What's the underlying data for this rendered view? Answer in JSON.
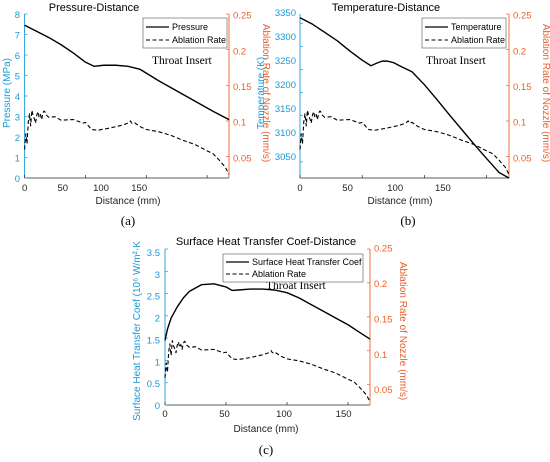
{
  "colors": {
    "left_axis": "#1a9ad6",
    "right_axis": "#e8602c",
    "line": "#000000"
  },
  "panels": [
    {
      "caption": "(a)",
      "title": "Pressure-Distance",
      "xlabel": "Distance (mm)",
      "ylabel_left": "Pressure (MPa)",
      "ylabel_right": "Ablation Rate of Nozzle (mm/s)",
      "annotation": "Throat Insert",
      "legend": [
        "Pressure",
        "Ablation Rate"
      ],
      "x_ticks": [
        "0",
        "50",
        "100",
        "150"
      ],
      "y_left_ticks": [
        "0",
        "1",
        "2",
        "3",
        "4",
        "5",
        "6",
        "7",
        "8"
      ],
      "y_right_ticks": [
        "0.05",
        "0.1",
        "0.15",
        "0.2",
        "0.25"
      ]
    },
    {
      "caption": "(b)",
      "title": "Temperature-Distance",
      "xlabel": "Distance (mm)",
      "ylabel_left": "Temperature (K)",
      "ylabel_right": "Ablation Rate of Nozzle (mm/s)",
      "annotation": "Throat Insert",
      "legend": [
        "Temperature",
        "Ablation Rate"
      ],
      "x_ticks": [
        "0",
        "50",
        "100",
        "150"
      ],
      "y_left_ticks": [
        "3050",
        "3100",
        "3150",
        "3200",
        "3250",
        "3300",
        "3350"
      ],
      "y_right_ticks": [
        "0.05",
        "0.1",
        "0.15",
        "0.2",
        "0.25"
      ]
    },
    {
      "caption": "(c)",
      "title": "Surface Heat Transfer Coef-Distance",
      "xlabel": "Distance (mm)",
      "ylabel_left": "Surface Heat Transfer Coef (10⁶ W/m²·K",
      "ylabel_right": "Ablation Rate of Nozzle (mm/s)",
      "annotation": "Throat Insert",
      "legend": [
        "Surface Heat Transfer Coef",
        "Ablation Rate"
      ],
      "x_ticks": [
        "0",
        "50",
        "100",
        "150"
      ],
      "y_left_ticks": [
        "0",
        "0.5",
        "1",
        "1.5",
        "2",
        "2.5",
        "3",
        "3.5"
      ],
      "y_right_ticks": [
        "0.05",
        "0.1",
        "0.15",
        "0.2",
        "0.25"
      ]
    }
  ],
  "chart_data": [
    {
      "type": "line",
      "title": "Pressure-Distance",
      "xlabel": "Distance (mm)",
      "ylabel": "Pressure (MPa)",
      "y2label": "Ablation Rate of Nozzle (mm/s)",
      "xlim": [
        0,
        168
      ],
      "ylim": [
        0,
        8
      ],
      "y2lim": [
        0.02,
        0.25
      ],
      "legend_position": "top-right",
      "series": [
        {
          "name": "Pressure",
          "axis": "left",
          "style": "solid",
          "x": [
            0,
            10,
            20,
            30,
            40,
            50,
            57,
            65,
            75,
            85,
            95,
            110,
            125,
            140,
            155,
            168
          ],
          "y": [
            7.45,
            7.15,
            6.85,
            6.5,
            6.1,
            5.65,
            5.45,
            5.5,
            5.5,
            5.45,
            5.3,
            4.75,
            4.25,
            3.75,
            3.25,
            2.85
          ]
        },
        {
          "name": "Ablation Rate",
          "axis": "right",
          "style": "dashed",
          "x": [
            0,
            1,
            2,
            3,
            4,
            5,
            6,
            7,
            8,
            9,
            10,
            11,
            12,
            13,
            14,
            15,
            16,
            17,
            18,
            20,
            25,
            30,
            40,
            48,
            50,
            55,
            60,
            70,
            80,
            85,
            87,
            88,
            90,
            95,
            100,
            110,
            120,
            130,
            140,
            150,
            155,
            160,
            165,
            168
          ],
          "y": [
            0.06,
            0.082,
            0.068,
            0.098,
            0.11,
            0.093,
            0.115,
            0.107,
            0.103,
            0.097,
            0.108,
            0.113,
            0.105,
            0.109,
            0.102,
            0.111,
            0.114,
            0.112,
            0.108,
            0.105,
            0.106,
            0.101,
            0.102,
            0.097,
            0.098,
            0.088,
            0.087,
            0.09,
            0.094,
            0.097,
            0.1,
            0.097,
            0.098,
            0.092,
            0.088,
            0.085,
            0.08,
            0.073,
            0.067,
            0.058,
            0.054,
            0.045,
            0.035,
            0.025
          ]
        }
      ]
    },
    {
      "type": "line",
      "title": "Temperature-Distance",
      "xlabel": "Distance (mm)",
      "ylabel": "Temperature (K)",
      "y2label": "Ablation Rate of Nozzle (mm/s)",
      "xlim": [
        0,
        168
      ],
      "ylim": [
        3015,
        3370
      ],
      "y2lim": [
        0.02,
        0.25
      ],
      "legend_position": "top-right",
      "series": [
        {
          "name": "Temperature",
          "axis": "left",
          "style": "solid",
          "x": [
            0,
            10,
            20,
            30,
            40,
            50,
            57,
            62,
            66,
            70,
            75,
            80,
            90,
            100,
            110,
            120,
            130,
            140,
            150,
            160,
            168
          ],
          "y": [
            3362,
            3348,
            3330,
            3312,
            3290,
            3270,
            3258,
            3264,
            3268,
            3268,
            3265,
            3258,
            3245,
            3217,
            3185,
            3152,
            3120,
            3088,
            3057,
            3027,
            3015
          ]
        },
        {
          "name": "Ablation Rate",
          "axis": "right",
          "style": "dashed",
          "x": [
            0,
            1,
            2,
            3,
            4,
            5,
            6,
            7,
            8,
            9,
            10,
            11,
            12,
            13,
            14,
            15,
            16,
            17,
            18,
            20,
            25,
            30,
            40,
            48,
            50,
            55,
            60,
            70,
            80,
            85,
            87,
            88,
            90,
            95,
            100,
            110,
            120,
            130,
            140,
            150,
            155,
            160,
            165,
            168
          ],
          "y": [
            0.06,
            0.082,
            0.068,
            0.098,
            0.11,
            0.093,
            0.115,
            0.107,
            0.103,
            0.097,
            0.108,
            0.113,
            0.105,
            0.109,
            0.102,
            0.111,
            0.114,
            0.112,
            0.108,
            0.105,
            0.106,
            0.101,
            0.102,
            0.097,
            0.098,
            0.088,
            0.087,
            0.09,
            0.094,
            0.097,
            0.1,
            0.097,
            0.098,
            0.092,
            0.088,
            0.085,
            0.08,
            0.073,
            0.067,
            0.058,
            0.054,
            0.045,
            0.035,
            0.025
          ]
        }
      ]
    },
    {
      "type": "line",
      "title": "Surface Heat Transfer Coef-Distance",
      "xlabel": "Distance (mm)",
      "ylabel": "Surface Heat Transfer Coef (10⁶ W/m²·K",
      "y2label": "Ablation Rate of Nozzle (mm/s)",
      "xlim": [
        0,
        168
      ],
      "ylim": [
        0,
        3.5
      ],
      "y2lim": [
        0.02,
        0.25
      ],
      "legend_position": "top-right",
      "series": [
        {
          "name": "Surface Heat Transfer Coef",
          "axis": "left",
          "style": "solid",
          "x": [
            0,
            2,
            5,
            10,
            15,
            20,
            30,
            40,
            50,
            55,
            60,
            70,
            80,
            90,
            100,
            110,
            120,
            130,
            140,
            150,
            160,
            168
          ],
          "y": [
            1.45,
            1.7,
            1.95,
            2.2,
            2.4,
            2.55,
            2.7,
            2.72,
            2.65,
            2.57,
            2.58,
            2.6,
            2.6,
            2.58,
            2.52,
            2.4,
            2.25,
            2.1,
            1.95,
            1.8,
            1.62,
            1.48
          ]
        },
        {
          "name": "Ablation Rate",
          "axis": "right",
          "style": "dashed",
          "x": [
            0,
            1,
            2,
            3,
            4,
            5,
            6,
            7,
            8,
            9,
            10,
            11,
            12,
            13,
            14,
            15,
            16,
            17,
            18,
            20,
            25,
            30,
            40,
            48,
            50,
            55,
            60,
            70,
            80,
            85,
            87,
            88,
            90,
            95,
            100,
            110,
            120,
            130,
            140,
            150,
            155,
            160,
            165,
            168
          ],
          "y": [
            0.06,
            0.082,
            0.068,
            0.098,
            0.11,
            0.093,
            0.115,
            0.107,
            0.103,
            0.097,
            0.108,
            0.113,
            0.105,
            0.109,
            0.102,
            0.111,
            0.114,
            0.112,
            0.108,
            0.105,
            0.106,
            0.101,
            0.102,
            0.097,
            0.098,
            0.088,
            0.087,
            0.09,
            0.094,
            0.097,
            0.1,
            0.097,
            0.098,
            0.092,
            0.088,
            0.085,
            0.08,
            0.073,
            0.067,
            0.058,
            0.054,
            0.045,
            0.035,
            0.025
          ]
        }
      ]
    }
  ]
}
